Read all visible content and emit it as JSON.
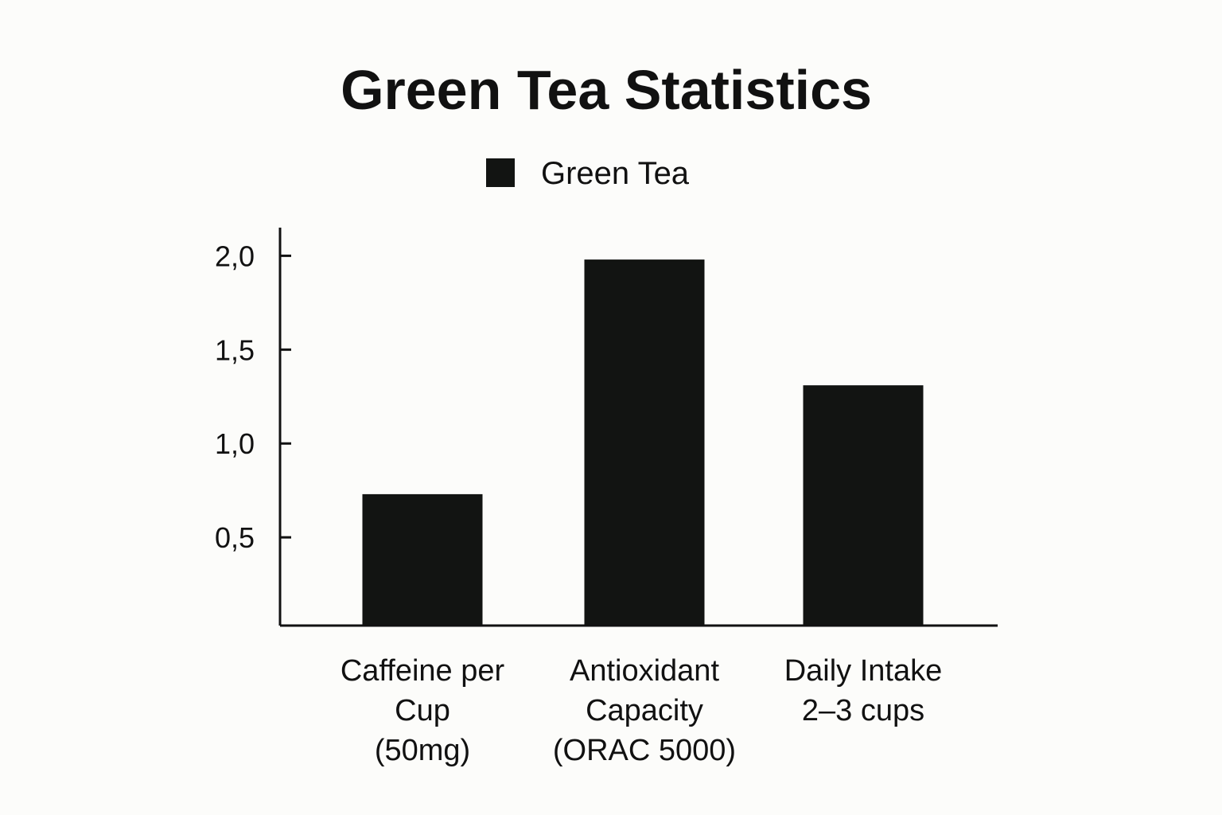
{
  "chart_data": {
    "type": "bar",
    "title": "Green Tea Statistics",
    "legend": {
      "position": "top-center",
      "entries": [
        "Green Tea"
      ]
    },
    "categories": [
      [
        "Caffeine per",
        "Cup",
        "(50mg)"
      ],
      [
        "Antioxidant",
        "Capacity",
        "(ORAC 5000)"
      ],
      [
        "Daily Intake",
        "2–3 cups"
      ]
    ],
    "series": [
      {
        "name": "Green Tea",
        "values": [
          0.73,
          1.98,
          1.31
        ],
        "color": "#121412"
      }
    ],
    "yticks": [
      "0,5",
      "1,0",
      "1,5",
      "2,0"
    ],
    "ytick_values": [
      0.5,
      1.0,
      1.5,
      2.0
    ],
    "ylim": [
      0.03,
      2.15
    ],
    "xlabel": "",
    "ylabel": "",
    "grid": false
  },
  "colors": {
    "background": "#fcfcfa",
    "bar": "#121412",
    "text": "#111111",
    "axis": "#111111"
  }
}
